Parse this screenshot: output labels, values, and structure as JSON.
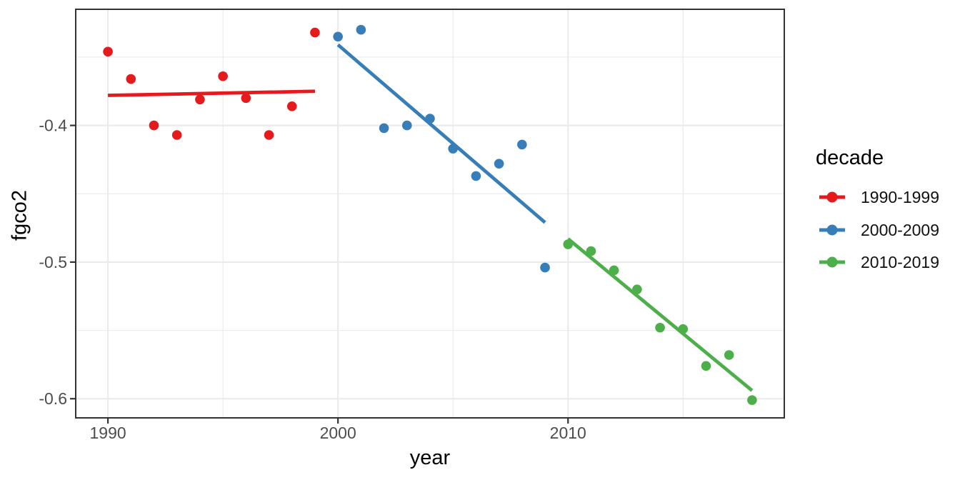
{
  "chart_data": {
    "type": "scatter",
    "title": "",
    "xlabel": "year",
    "ylabel": "fgco2",
    "grid": "on",
    "panel_border_color": "#333333",
    "gridline_color": "#ebebeb",
    "tick_label_color": "#4d4d4d",
    "x_axis": {
      "range": [
        1988.6,
        2019.4
      ],
      "major_ticks": [
        1990,
        2000,
        2010
      ],
      "major_tick_labels": [
        "1990",
        "2000",
        "2010"
      ],
      "minor_ticks": [
        1995,
        2005,
        2015
      ]
    },
    "y_axis": {
      "range": [
        -0.614,
        -0.315
      ],
      "major_ticks": [
        -0.4,
        -0.5,
        -0.6
      ],
      "major_tick_labels": [
        "-0.4",
        "-0.5",
        "-0.6"
      ],
      "minor_ticks": [
        -0.35,
        -0.45,
        -0.55
      ]
    },
    "legend": {
      "title": "decade",
      "position": "right"
    },
    "series": [
      {
        "name": "1990-1999",
        "color": "#E41A1C",
        "years": [
          1990,
          1991,
          1992,
          1993,
          1994,
          1995,
          1996,
          1997,
          1998,
          1999
        ],
        "values": [
          -0.346,
          -0.366,
          -0.4,
          -0.407,
          -0.381,
          -0.364,
          -0.38,
          -0.407,
          -0.386,
          -0.332
        ],
        "trend": {
          "years": [
            1990,
            1999
          ],
          "values": [
            -0.378,
            -0.375
          ]
        }
      },
      {
        "name": "2000-2009",
        "color": "#377EB8",
        "years": [
          2000,
          2001,
          2002,
          2003,
          2004,
          2005,
          2006,
          2007,
          2008,
          2009
        ],
        "values": [
          -0.335,
          -0.33,
          -0.402,
          -0.4,
          -0.395,
          -0.417,
          -0.437,
          -0.428,
          -0.414,
          -0.504
        ],
        "trend": {
          "years": [
            2000,
            2009
          ],
          "values": [
            -0.341,
            -0.471
          ]
        }
      },
      {
        "name": "2010-2019",
        "color": "#4DAF4A",
        "years": [
          2010,
          2011,
          2012,
          2013,
          2014,
          2015,
          2016,
          2017,
          2018
        ],
        "values": [
          -0.487,
          -0.492,
          -0.506,
          -0.52,
          -0.548,
          -0.549,
          -0.576,
          -0.568,
          -0.601
        ],
        "trend": {
          "years": [
            2010,
            2018
          ],
          "values": [
            -0.483,
            -0.594
          ]
        }
      }
    ]
  }
}
